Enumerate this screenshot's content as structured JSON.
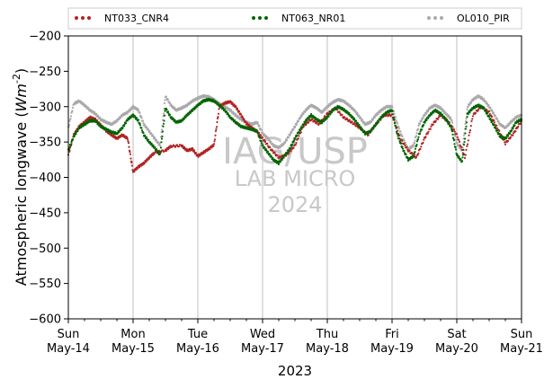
{
  "chart_data": {
    "type": "scatter",
    "title": "",
    "ylabel": "Atmospheric longwave ($Wm^{-2}$)",
    "xlabel": "2023",
    "ylim": [
      -600,
      -200
    ],
    "yticks": [
      -200,
      -250,
      -300,
      -350,
      -400,
      -450,
      -500,
      -550,
      -600
    ],
    "xlim": [
      "2023-05-14",
      "2023-05-21"
    ],
    "xticks": [
      {
        "day": "Sun",
        "date": "May-14"
      },
      {
        "day": "Mon",
        "date": "May-15"
      },
      {
        "day": "Tue",
        "date": "May-16"
      },
      {
        "day": "Wed",
        "date": "May-17"
      },
      {
        "day": "Thu",
        "date": "May-18"
      },
      {
        "day": "Fri",
        "date": "May-19"
      },
      {
        "day": "Sat",
        "date": "May-20"
      },
      {
        "day": "Sun",
        "date": "May-21"
      }
    ],
    "grid": "vertical",
    "legend_position": "top",
    "watermark": [
      "IAG/USP",
      "LAB MICRO",
      "2024"
    ],
    "series": [
      {
        "name": "NT033_CNR4",
        "color": "#b22222",
        "points": [
          [
            "2023-05-14 00:00",
            -368
          ],
          [
            "2023-05-14 02:00",
            -340
          ],
          [
            "2023-05-14 04:00",
            -328
          ],
          [
            "2023-05-14 06:00",
            -322
          ],
          [
            "2023-05-14 08:00",
            -315
          ],
          [
            "2023-05-14 10:00",
            -318
          ],
          [
            "2023-05-14 12:00",
            -326
          ],
          [
            "2023-05-14 14:00",
            -334
          ],
          [
            "2023-05-14 16:00",
            -340
          ],
          [
            "2023-05-14 18:00",
            -345
          ],
          [
            "2023-05-14 20:00",
            -340
          ],
          [
            "2023-05-14 22:00",
            -345
          ],
          [
            "2023-05-15 00:00",
            -392
          ],
          [
            "2023-05-15 02:00",
            -385
          ],
          [
            "2023-05-15 04:00",
            -380
          ],
          [
            "2023-05-15 06:00",
            -372
          ],
          [
            "2023-05-15 08:00",
            -365
          ],
          [
            "2023-05-15 12:00",
            -362
          ],
          [
            "2023-05-15 14:00",
            -356
          ],
          [
            "2023-05-15 18:00",
            -355
          ],
          [
            "2023-05-15 20:00",
            -362
          ],
          [
            "2023-05-15 22:00",
            -360
          ],
          [
            "2023-05-16 00:00",
            -370
          ],
          [
            "2023-05-16 02:00",
            -365
          ],
          [
            "2023-05-16 04:00",
            -360
          ],
          [
            "2023-05-16 06:00",
            -354
          ],
          [
            "2023-05-16 08:00",
            -300
          ],
          [
            "2023-05-16 10:00",
            -295
          ],
          [
            "2023-05-16 12:00",
            -293
          ],
          [
            "2023-05-16 14:00",
            -300
          ],
          [
            "2023-05-16 16:00",
            -312
          ],
          [
            "2023-05-16 18:00",
            -324
          ],
          [
            "2023-05-16 20:00",
            -330
          ],
          [
            "2023-05-16 22:00",
            -335
          ],
          [
            "2023-05-17 00:00",
            -345
          ],
          [
            "2023-05-17 03:00",
            -360
          ],
          [
            "2023-05-17 06:00",
            -372
          ],
          [
            "2023-05-17 09:00",
            -368
          ],
          [
            "2023-05-17 12:00",
            -355
          ],
          [
            "2023-05-17 15:00",
            -328
          ],
          [
            "2023-05-17 18:00",
            -318
          ],
          [
            "2023-05-17 21:00",
            -325
          ],
          [
            "2023-05-18 00:00",
            -310
          ],
          [
            "2023-05-18 03:00",
            -302
          ],
          [
            "2023-05-18 06:00",
            -315
          ],
          [
            "2023-05-18 09:00",
            -322
          ],
          [
            "2023-05-18 12:00",
            -330
          ],
          [
            "2023-05-18 15:00",
            -340
          ],
          [
            "2023-05-18 18:00",
            -325
          ],
          [
            "2023-05-18 21:00",
            -312
          ],
          [
            "2023-05-19 00:00",
            -312
          ],
          [
            "2023-05-19 03:00",
            -345
          ],
          [
            "2023-05-19 06:00",
            -362
          ],
          [
            "2023-05-19 09:00",
            -372
          ],
          [
            "2023-05-19 12:00",
            -345
          ],
          [
            "2023-05-19 15:00",
            -325
          ],
          [
            "2023-05-19 18:00",
            -312
          ],
          [
            "2023-05-19 21:00",
            -322
          ],
          [
            "2023-05-20 00:00",
            -340
          ],
          [
            "2023-05-20 03:00",
            -372
          ],
          [
            "2023-05-20 06:00",
            -312
          ],
          [
            "2023-05-20 09:00",
            -300
          ],
          [
            "2023-05-20 12:00",
            -308
          ],
          [
            "2023-05-20 15:00",
            -330
          ],
          [
            "2023-05-20 18:00",
            -352
          ],
          [
            "2023-05-20 21:00",
            -338
          ],
          [
            "2023-05-21 00:00",
            -320
          ]
        ]
      },
      {
        "name": "NT063_NR01",
        "color": "#006400",
        "points": [
          [
            "2023-05-14 00:00",
            -362
          ],
          [
            "2023-05-14 02:00",
            -342
          ],
          [
            "2023-05-14 04:00",
            -330
          ],
          [
            "2023-05-14 06:00",
            -325
          ],
          [
            "2023-05-14 08:00",
            -320
          ],
          [
            "2023-05-14 10:00",
            -320
          ],
          [
            "2023-05-14 12:00",
            -328
          ],
          [
            "2023-05-14 14:00",
            -332
          ],
          [
            "2023-05-14 16:00",
            -336
          ],
          [
            "2023-05-14 18:00",
            -338
          ],
          [
            "2023-05-14 20:00",
            -330
          ],
          [
            "2023-05-14 22:00",
            -318
          ],
          [
            "2023-05-15 00:00",
            -312
          ],
          [
            "2023-05-15 02:00",
            -320
          ],
          [
            "2023-05-15 04:00",
            -340
          ],
          [
            "2023-05-15 06:00",
            -350
          ],
          [
            "2023-05-15 08:00",
            -358
          ],
          [
            "2023-05-15 10:00",
            -368
          ],
          [
            "2023-05-15 12:00",
            -302
          ],
          [
            "2023-05-15 14:00",
            -315
          ],
          [
            "2023-05-15 16:00",
            -322
          ],
          [
            "2023-05-15 18:00",
            -320
          ],
          [
            "2023-05-15 20:00",
            -312
          ],
          [
            "2023-05-15 22:00",
            -305
          ],
          [
            "2023-05-16 00:00",
            -298
          ],
          [
            "2023-05-16 02:00",
            -292
          ],
          [
            "2023-05-16 04:00",
            -290
          ],
          [
            "2023-05-16 06:00",
            -292
          ],
          [
            "2023-05-16 08:00",
            -298
          ],
          [
            "2023-05-16 10:00",
            -305
          ],
          [
            "2023-05-16 12:00",
            -315
          ],
          [
            "2023-05-16 14:00",
            -322
          ],
          [
            "2023-05-16 16:00",
            -328
          ],
          [
            "2023-05-16 18:00",
            -330
          ],
          [
            "2023-05-16 20:00",
            -332
          ],
          [
            "2023-05-16 22:00",
            -335
          ],
          [
            "2023-05-17 00:00",
            -355
          ],
          [
            "2023-05-17 02:00",
            -365
          ],
          [
            "2023-05-17 04:00",
            -375
          ],
          [
            "2023-05-17 06:00",
            -380
          ],
          [
            "2023-05-17 08:00",
            -370
          ],
          [
            "2023-05-17 10:00",
            -360
          ],
          [
            "2023-05-17 12:00",
            -345
          ],
          [
            "2023-05-17 14:00",
            -332
          ],
          [
            "2023-05-17 16:00",
            -320
          ],
          [
            "2023-05-17 18:00",
            -312
          ],
          [
            "2023-05-17 20:00",
            -318
          ],
          [
            "2023-05-17 22:00",
            -322
          ],
          [
            "2023-05-18 00:00",
            -315
          ],
          [
            "2023-05-18 02:00",
            -305
          ],
          [
            "2023-05-18 04:00",
            -300
          ],
          [
            "2023-05-18 06:00",
            -304
          ],
          [
            "2023-05-18 08:00",
            -310
          ],
          [
            "2023-05-18 10:00",
            -318
          ],
          [
            "2023-05-18 12:00",
            -328
          ],
          [
            "2023-05-18 14:00",
            -338
          ],
          [
            "2023-05-18 16:00",
            -335
          ],
          [
            "2023-05-18 18:00",
            -325
          ],
          [
            "2023-05-18 20:00",
            -315
          ],
          [
            "2023-05-18 22:00",
            -308
          ],
          [
            "2023-05-19 00:00",
            -305
          ],
          [
            "2023-05-19 02:00",
            -340
          ],
          [
            "2023-05-19 04:00",
            -360
          ],
          [
            "2023-05-19 06:00",
            -375
          ],
          [
            "2023-05-19 08:00",
            -370
          ],
          [
            "2023-05-19 10:00",
            -340
          ],
          [
            "2023-05-19 12:00",
            -322
          ],
          [
            "2023-05-19 14:00",
            -312
          ],
          [
            "2023-05-19 16:00",
            -305
          ],
          [
            "2023-05-19 18:00",
            -310
          ],
          [
            "2023-05-19 20:00",
            -318
          ],
          [
            "2023-05-19 22:00",
            -330
          ],
          [
            "2023-05-20 00:00",
            -368
          ],
          [
            "2023-05-20 02:00",
            -378
          ],
          [
            "2023-05-20 04:00",
            -310
          ],
          [
            "2023-05-20 06:00",
            -302
          ],
          [
            "2023-05-20 08:00",
            -298
          ],
          [
            "2023-05-20 10:00",
            -302
          ],
          [
            "2023-05-20 12:00",
            -315
          ],
          [
            "2023-05-20 14:00",
            -328
          ],
          [
            "2023-05-20 16:00",
            -342
          ],
          [
            "2023-05-20 18:00",
            -345
          ],
          [
            "2023-05-20 20:00",
            -335
          ],
          [
            "2023-05-20 22:00",
            -322
          ],
          [
            "2023-05-21 00:00",
            -318
          ]
        ]
      },
      {
        "name": "OL010_PIR",
        "color": "#a9a9a9",
        "points": [
          [
            "2023-05-14 00:00",
            -330
          ],
          [
            "2023-05-14 02:00",
            -296
          ],
          [
            "2023-05-14 04:00",
            -292
          ],
          [
            "2023-05-14 06:00",
            -298
          ],
          [
            "2023-05-14 08:00",
            -305
          ],
          [
            "2023-05-14 10:00",
            -310
          ],
          [
            "2023-05-14 12:00",
            -318
          ],
          [
            "2023-05-14 14:00",
            -322
          ],
          [
            "2023-05-14 16:00",
            -325
          ],
          [
            "2023-05-14 18:00",
            -320
          ],
          [
            "2023-05-14 20:00",
            -312
          ],
          [
            "2023-05-14 22:00",
            -308
          ],
          [
            "2023-05-15 00:00",
            -300
          ],
          [
            "2023-05-15 02:00",
            -305
          ],
          [
            "2023-05-15 04:00",
            -325
          ],
          [
            "2023-05-15 06:00",
            -335
          ],
          [
            "2023-05-15 08:00",
            -345
          ],
          [
            "2023-05-15 10:00",
            -355
          ],
          [
            "2023-05-15 12:00",
            -285
          ],
          [
            "2023-05-15 14:00",
            -298
          ],
          [
            "2023-05-15 16:00",
            -305
          ],
          [
            "2023-05-15 18:00",
            -302
          ],
          [
            "2023-05-15 20:00",
            -298
          ],
          [
            "2023-05-15 22:00",
            -292
          ],
          [
            "2023-05-16 00:00",
            -288
          ],
          [
            "2023-05-16 02:00",
            -285
          ],
          [
            "2023-05-16 04:00",
            -286
          ],
          [
            "2023-05-16 06:00",
            -290
          ],
          [
            "2023-05-16 08:00",
            -296
          ],
          [
            "2023-05-16 10:00",
            -300
          ],
          [
            "2023-05-16 12:00",
            -305
          ],
          [
            "2023-05-16 14:00",
            -312
          ],
          [
            "2023-05-16 16:00",
            -318
          ],
          [
            "2023-05-16 18:00",
            -322
          ],
          [
            "2023-05-16 20:00",
            -325
          ],
          [
            "2023-05-16 22:00",
            -322
          ],
          [
            "2023-05-17 00:00",
            -338
          ],
          [
            "2023-05-17 02:00",
            -345
          ],
          [
            "2023-05-17 04:00",
            -355
          ],
          [
            "2023-05-17 06:00",
            -358
          ],
          [
            "2023-05-17 08:00",
            -352
          ],
          [
            "2023-05-17 10:00",
            -340
          ],
          [
            "2023-05-17 12:00",
            -328
          ],
          [
            "2023-05-17 14:00",
            -315
          ],
          [
            "2023-05-17 16:00",
            -305
          ],
          [
            "2023-05-17 18:00",
            -298
          ],
          [
            "2023-05-17 20:00",
            -302
          ],
          [
            "2023-05-17 22:00",
            -308
          ],
          [
            "2023-05-18 00:00",
            -300
          ],
          [
            "2023-05-18 02:00",
            -294
          ],
          [
            "2023-05-18 04:00",
            -290
          ],
          [
            "2023-05-18 06:00",
            -292
          ],
          [
            "2023-05-18 08:00",
            -298
          ],
          [
            "2023-05-18 10:00",
            -305
          ],
          [
            "2023-05-18 12:00",
            -315
          ],
          [
            "2023-05-18 14:00",
            -325
          ],
          [
            "2023-05-18 16:00",
            -322
          ],
          [
            "2023-05-18 18:00",
            -312
          ],
          [
            "2023-05-18 20:00",
            -305
          ],
          [
            "2023-05-18 22:00",
            -300
          ],
          [
            "2023-05-19 00:00",
            -300
          ],
          [
            "2023-05-19 02:00",
            -325
          ],
          [
            "2023-05-19 04:00",
            -345
          ],
          [
            "2023-05-19 06:00",
            -360
          ],
          [
            "2023-05-19 08:00",
            -355
          ],
          [
            "2023-05-19 10:00",
            -325
          ],
          [
            "2023-05-19 12:00",
            -312
          ],
          [
            "2023-05-19 14:00",
            -302
          ],
          [
            "2023-05-19 16:00",
            -298
          ],
          [
            "2023-05-19 18:00",
            -302
          ],
          [
            "2023-05-19 20:00",
            -310
          ],
          [
            "2023-05-19 22:00",
            -318
          ],
          [
            "2023-05-20 00:00",
            -352
          ],
          [
            "2023-05-20 02:00",
            -362
          ],
          [
            "2023-05-20 04:00",
            -300
          ],
          [
            "2023-05-20 06:00",
            -290
          ],
          [
            "2023-05-20 08:00",
            -285
          ],
          [
            "2023-05-20 10:00",
            -290
          ],
          [
            "2023-05-20 12:00",
            -300
          ],
          [
            "2023-05-20 14:00",
            -312
          ],
          [
            "2023-05-20 16:00",
            -325
          ],
          [
            "2023-05-20 18:00",
            -330
          ],
          [
            "2023-05-20 20:00",
            -322
          ],
          [
            "2023-05-20 22:00",
            -315
          ],
          [
            "2023-05-21 00:00",
            -312
          ]
        ]
      }
    ]
  }
}
